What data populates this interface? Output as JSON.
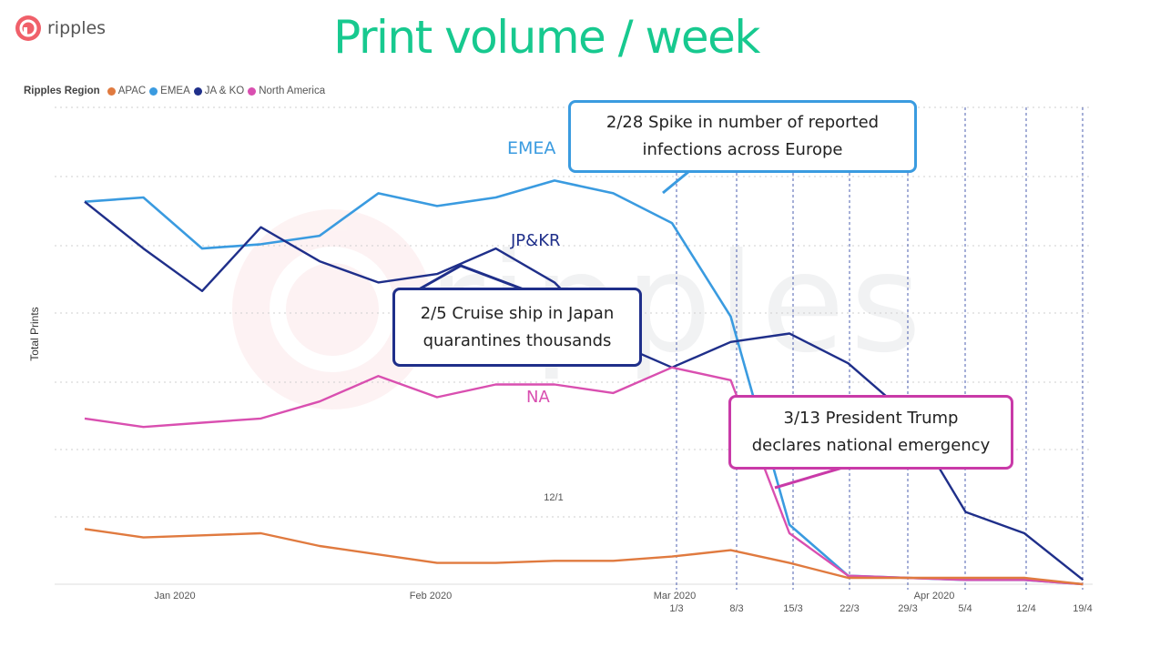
{
  "brand": {
    "name": "ripples"
  },
  "title": "Print volume / week",
  "legend": {
    "title": "Ripples Region",
    "items": [
      {
        "label": "APAC",
        "color": "#e07a3f"
      },
      {
        "label": "EMEA",
        "color": "#3a9be0"
      },
      {
        "label": "JA & KO",
        "color": "#1f2f8a"
      },
      {
        "label": "North America",
        "color": "#d94fb0"
      }
    ]
  },
  "annotations": {
    "europe": [
      "2/28 Spike in number of reported",
      "infections across Europe"
    ],
    "japan": [
      "2/5 Cruise ship in Japan",
      "quarantines thousands"
    ],
    "trump": [
      "3/13 President Trump",
      "declares national emergency"
    ]
  },
  "chart_data": {
    "type": "line",
    "ylabel": "Total Prints",
    "x_tick_labels": [
      "Jan 2020",
      "Feb 2020",
      "Mar 2020",
      "Apr 2020"
    ],
    "x_marker": "12/1",
    "week_labels": [
      "1/3",
      "8/3",
      "15/3",
      "22/3",
      "29/3",
      "5/4",
      "12/4",
      "19/4"
    ],
    "series_labels": {
      "EMEA": "EMEA",
      "JA & KO": "JP&KR",
      "North America": "NA"
    },
    "series": [
      {
        "name": "EMEA",
        "color": "#3a9be0",
        "values": [
          90,
          91,
          79,
          80,
          82,
          92,
          89,
          91,
          95,
          92,
          85,
          63,
          14,
          2,
          1.5,
          1,
          1,
          0
        ]
      },
      {
        "name": "JA & KO",
        "color": "#1f2f8a",
        "values": [
          90,
          79,
          69,
          84,
          76,
          71,
          73,
          79,
          71,
          57,
          51,
          57,
          59,
          52,
          40,
          17,
          12,
          1
        ]
      },
      {
        "name": "North America",
        "color": "#d94fb0",
        "values": [
          39,
          37,
          38,
          39,
          43,
          49,
          44,
          47,
          47,
          45,
          51,
          48,
          12,
          2,
          1.5,
          1,
          1,
          0
        ]
      },
      {
        "name": "APAC",
        "color": "#e07a3f",
        "values": [
          13,
          11,
          11.5,
          12,
          9,
          7,
          5,
          5,
          5.5,
          5.5,
          6.5,
          8,
          5,
          1.5,
          1.5,
          1.5,
          1.5,
          0
        ]
      }
    ]
  }
}
